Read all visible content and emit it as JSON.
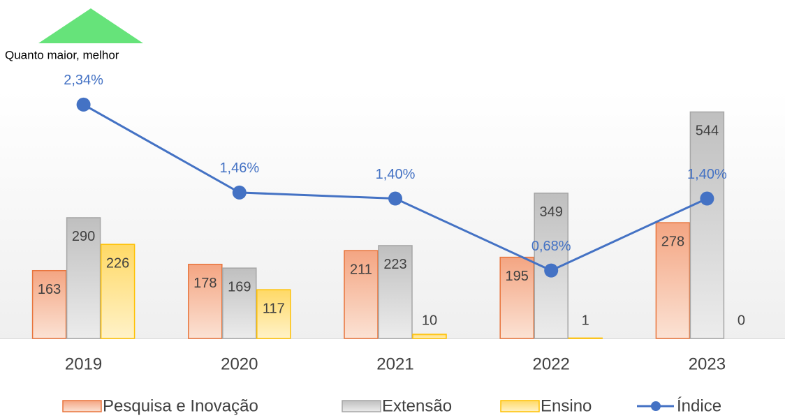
{
  "chart_data": {
    "type": "bar",
    "annotation": "Quanto maior, melhor",
    "categories": [
      "2019",
      "2020",
      "2021",
      "2022",
      "2023"
    ],
    "ylim": [
      0,
      600
    ],
    "y2lim": [
      0,
      2.5
    ],
    "legend": "bottom",
    "series": [
      {
        "name": "Pesquisa e Inovação",
        "type": "bar",
        "color": "#f4a582",
        "edge": "#e8743b",
        "values": [
          163,
          178,
          211,
          195,
          278
        ]
      },
      {
        "name": "Extensão",
        "type": "bar",
        "color": "#bfbfbf",
        "edge": "#a6a6a6",
        "values": [
          290,
          169,
          223,
          349,
          544
        ]
      },
      {
        "name": "Ensino",
        "type": "bar",
        "color": "#ffd966",
        "edge": "#ffc000",
        "values": [
          226,
          117,
          10,
          1,
          0
        ]
      },
      {
        "name": "Índice",
        "type": "line",
        "axis": "y2",
        "color": "#4472c4",
        "values": [
          2.34,
          1.46,
          1.4,
          0.68,
          1.4
        ],
        "value_labels": [
          "2,34%",
          "1,46%",
          "1,40%",
          "0,68%",
          "1,40%"
        ]
      }
    ]
  }
}
